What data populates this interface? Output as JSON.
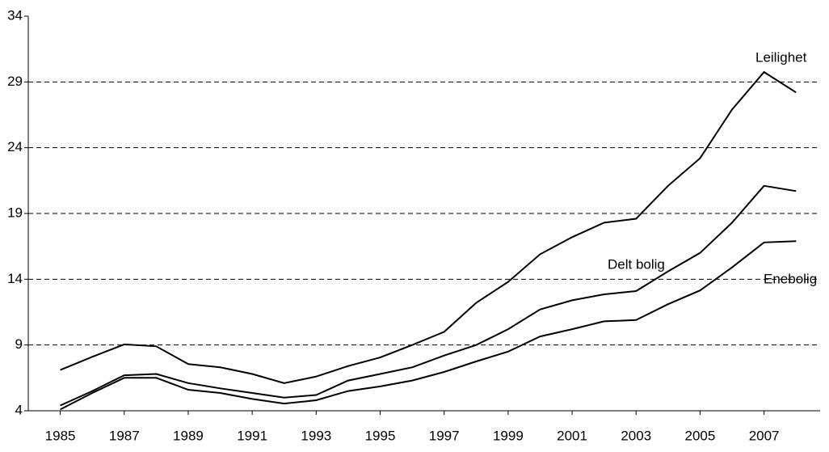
{
  "chart_data": {
    "type": "line",
    "x": [
      1985,
      1986,
      1987,
      1988,
      1989,
      1990,
      1991,
      1992,
      1993,
      1994,
      1995,
      1996,
      1997,
      1998,
      1999,
      2000,
      2001,
      2002,
      2003,
      2004,
      2005,
      2006,
      2007,
      2008
    ],
    "series": [
      {
        "name": "Leilighet",
        "color": "#000000",
        "values": [
          7.1,
          8.1,
          9.05,
          8.9,
          7.55,
          7.3,
          6.8,
          6.1,
          6.6,
          7.4,
          8.05,
          9.0,
          10.0,
          12.2,
          13.8,
          15.9,
          17.2,
          18.3,
          18.6,
          21.1,
          23.2,
          26.9,
          29.75,
          28.2
        ]
      },
      {
        "name": "Delt bolig",
        "color": "#000000",
        "values": [
          4.4,
          5.5,
          6.7,
          6.8,
          6.1,
          5.7,
          5.35,
          5.0,
          5.2,
          6.3,
          6.8,
          7.3,
          8.2,
          9.0,
          10.2,
          11.7,
          12.4,
          12.85,
          13.1,
          14.6,
          16.0,
          18.3,
          21.1,
          20.7
        ]
      },
      {
        "name": "Enebolig",
        "color": "#000000",
        "values": [
          4.1,
          5.35,
          6.5,
          6.5,
          5.6,
          5.35,
          4.9,
          4.55,
          4.8,
          5.5,
          5.85,
          6.3,
          6.95,
          7.75,
          8.5,
          9.65,
          10.2,
          10.8,
          10.9,
          12.1,
          13.15,
          14.9,
          16.8,
          16.9
        ]
      }
    ],
    "xlim": [
      1984,
      2008.5
    ],
    "xticks": [
      1985,
      1987,
      1989,
      1991,
      1993,
      1995,
      1997,
      1999,
      2001,
      2003,
      2005,
      2007
    ],
    "ylim": [
      4,
      34
    ],
    "yticks": [
      4,
      9,
      14,
      19,
      24,
      29,
      34
    ],
    "grid": true
  }
}
